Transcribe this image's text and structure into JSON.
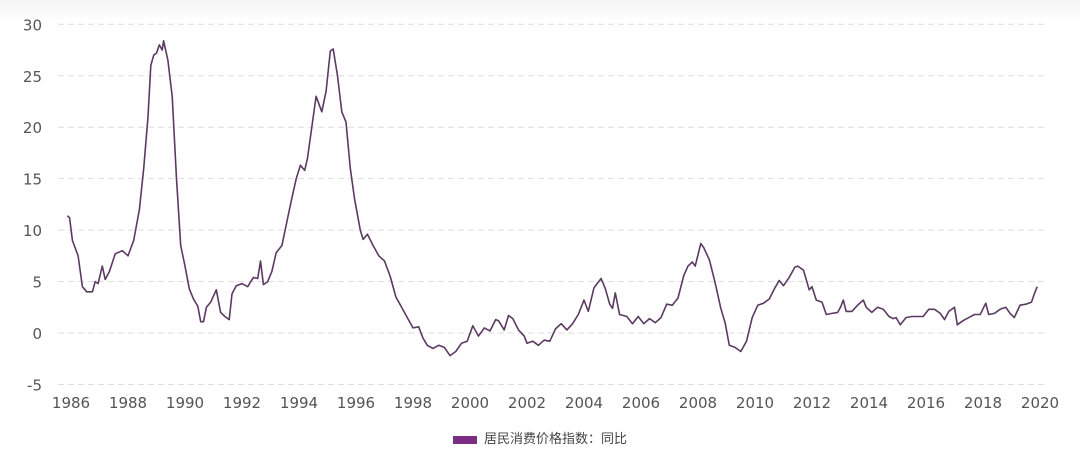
{
  "chart_data": {
    "type": "line",
    "title": "",
    "xlabel": "",
    "ylabel": "",
    "xlim": [
      1986,
      2020
    ],
    "ylim": [
      -5,
      30
    ],
    "x_ticks": [
      "1986",
      "1988",
      "1990",
      "1992",
      "1994",
      "1996",
      "1998",
      "2000",
      "2002",
      "2004",
      "2006",
      "2008",
      "2010",
      "2012",
      "2014",
      "2016",
      "2018",
      "2020"
    ],
    "y_ticks": [
      "-5",
      "0",
      "5",
      "10",
      "15",
      "20",
      "25",
      "30"
    ],
    "grid": "horizontal dashed",
    "legend_position": "bottom",
    "colors": {
      "line": "#5b3a61",
      "legend_swatch": "#7a2f82",
      "grid": "#dddddd"
    },
    "series": [
      {
        "name": "居民消费价格指数：同比",
        "points": [
          [
            1985.87,
            11.4
          ],
          [
            1985.95,
            11.2
          ],
          [
            1986.05,
            9
          ],
          [
            1986.25,
            7.5
          ],
          [
            1986.4,
            4.5
          ],
          [
            1986.55,
            4
          ],
          [
            1986.75,
            4
          ],
          [
            1986.85,
            5
          ],
          [
            1986.95,
            4.8
          ],
          [
            1987.1,
            6.5
          ],
          [
            1987.2,
            5.2
          ],
          [
            1987.35,
            6
          ],
          [
            1987.55,
            7.7
          ],
          [
            1987.8,
            8
          ],
          [
            1988.0,
            7.5
          ],
          [
            1988.2,
            9
          ],
          [
            1988.4,
            12
          ],
          [
            1988.55,
            16
          ],
          [
            1988.7,
            21
          ],
          [
            1988.8,
            26
          ],
          [
            1988.9,
            27
          ],
          [
            1989.0,
            27.2
          ],
          [
            1989.1,
            28
          ],
          [
            1989.2,
            27.5
          ],
          [
            1989.25,
            28.4
          ],
          [
            1989.4,
            26.5
          ],
          [
            1989.55,
            23
          ],
          [
            1989.7,
            15
          ],
          [
            1989.85,
            8.5
          ],
          [
            1990.0,
            6.5
          ],
          [
            1990.15,
            4.3
          ],
          [
            1990.3,
            3.3
          ],
          [
            1990.45,
            2.6
          ],
          [
            1990.55,
            1.1
          ],
          [
            1990.65,
            1.1
          ],
          [
            1990.75,
            2.5
          ],
          [
            1990.9,
            3
          ],
          [
            1991.1,
            4.2
          ],
          [
            1991.25,
            2
          ],
          [
            1991.4,
            1.6
          ],
          [
            1991.55,
            1.3
          ],
          [
            1991.65,
            3.8
          ],
          [
            1991.8,
            4.6
          ],
          [
            1992.0,
            4.8
          ],
          [
            1992.2,
            4.5
          ],
          [
            1992.4,
            5.4
          ],
          [
            1992.55,
            5.3
          ],
          [
            1992.65,
            7
          ],
          [
            1992.75,
            4.7
          ],
          [
            1992.9,
            5
          ],
          [
            1993.05,
            6
          ],
          [
            1993.2,
            7.8
          ],
          [
            1993.4,
            8.5
          ],
          [
            1993.55,
            10.5
          ],
          [
            1993.7,
            12.5
          ],
          [
            1993.9,
            15
          ],
          [
            1994.05,
            16.3
          ],
          [
            1994.2,
            15.8
          ],
          [
            1994.3,
            17
          ],
          [
            1994.45,
            20
          ],
          [
            1994.6,
            23
          ],
          [
            1994.8,
            21.5
          ],
          [
            1994.95,
            23.5
          ],
          [
            1995.1,
            27.4
          ],
          [
            1995.2,
            27.6
          ],
          [
            1995.35,
            25
          ],
          [
            1995.5,
            21.5
          ],
          [
            1995.65,
            20.5
          ],
          [
            1995.8,
            16
          ],
          [
            1995.95,
            13
          ],
          [
            1996.15,
            10
          ],
          [
            1996.25,
            9.1
          ],
          [
            1996.4,
            9.6
          ],
          [
            1996.6,
            8.5
          ],
          [
            1996.8,
            7.5
          ],
          [
            1997.0,
            7
          ],
          [
            1997.2,
            5.5
          ],
          [
            1997.4,
            3.5
          ],
          [
            1997.6,
            2.5
          ],
          [
            1997.8,
            1.5
          ],
          [
            1998.0,
            0.5
          ],
          [
            1998.2,
            0.6
          ],
          [
            1998.35,
            -0.5
          ],
          [
            1998.5,
            -1.2
          ],
          [
            1998.7,
            -1.5
          ],
          [
            1998.9,
            -1.2
          ],
          [
            1999.1,
            -1.4
          ],
          [
            1999.3,
            -2.2
          ],
          [
            1999.5,
            -1.8
          ],
          [
            1999.7,
            -1
          ],
          [
            1999.9,
            -0.8
          ],
          [
            2000.1,
            0.7
          ],
          [
            2000.3,
            -0.3
          ],
          [
            2000.5,
            0.5
          ],
          [
            2000.7,
            0.2
          ],
          [
            2000.9,
            1.3
          ],
          [
            2001.0,
            1.2
          ],
          [
            2001.2,
            0.3
          ],
          [
            2001.35,
            1.7
          ],
          [
            2001.5,
            1.4
          ],
          [
            2001.7,
            0.3
          ],
          [
            2001.9,
            -0.3
          ],
          [
            2002.0,
            -1
          ],
          [
            2002.2,
            -0.8
          ],
          [
            2002.4,
            -1.2
          ],
          [
            2002.6,
            -0.7
          ],
          [
            2002.8,
            -0.8
          ],
          [
            2003.0,
            0.4
          ],
          [
            2003.2,
            0.9
          ],
          [
            2003.4,
            0.3
          ],
          [
            2003.6,
            0.9
          ],
          [
            2003.8,
            1.8
          ],
          [
            2004.0,
            3.2
          ],
          [
            2004.15,
            2.1
          ],
          [
            2004.35,
            4.4
          ],
          [
            2004.6,
            5.3
          ],
          [
            2004.75,
            4.3
          ],
          [
            2004.9,
            2.8
          ],
          [
            2005.0,
            2.4
          ],
          [
            2005.1,
            3.9
          ],
          [
            2005.25,
            1.8
          ],
          [
            2005.5,
            1.6
          ],
          [
            2005.7,
            0.9
          ],
          [
            2005.9,
            1.6
          ],
          [
            2006.1,
            0.9
          ],
          [
            2006.3,
            1.4
          ],
          [
            2006.5,
            1.0
          ],
          [
            2006.7,
            1.5
          ],
          [
            2006.9,
            2.8
          ],
          [
            2007.1,
            2.7
          ],
          [
            2007.3,
            3.4
          ],
          [
            2007.5,
            5.6
          ],
          [
            2007.65,
            6.5
          ],
          [
            2007.8,
            6.9
          ],
          [
            2007.9,
            6.5
          ],
          [
            2008.1,
            8.7
          ],
          [
            2008.2,
            8.3
          ],
          [
            2008.4,
            7.1
          ],
          [
            2008.6,
            4.9
          ],
          [
            2008.8,
            2.4
          ],
          [
            2008.95,
            1.0
          ],
          [
            2009.1,
            -1.2
          ],
          [
            2009.3,
            -1.4
          ],
          [
            2009.5,
            -1.8
          ],
          [
            2009.7,
            -0.8
          ],
          [
            2009.9,
            1.5
          ],
          [
            2010.1,
            2.7
          ],
          [
            2010.3,
            2.9
          ],
          [
            2010.5,
            3.3
          ],
          [
            2010.7,
            4.4
          ],
          [
            2010.85,
            5.1
          ],
          [
            2011.0,
            4.6
          ],
          [
            2011.2,
            5.4
          ],
          [
            2011.4,
            6.4
          ],
          [
            2011.5,
            6.5
          ],
          [
            2011.7,
            6.1
          ],
          [
            2011.9,
            4.2
          ],
          [
            2012.0,
            4.5
          ],
          [
            2012.15,
            3.2
          ],
          [
            2012.35,
            3.0
          ],
          [
            2012.5,
            1.8
          ],
          [
            2012.7,
            1.9
          ],
          [
            2012.9,
            2.0
          ],
          [
            2013.0,
            2.5
          ],
          [
            2013.1,
            3.2
          ],
          [
            2013.2,
            2.1
          ],
          [
            2013.4,
            2.1
          ],
          [
            2013.6,
            2.7
          ],
          [
            2013.8,
            3.2
          ],
          [
            2013.9,
            2.5
          ],
          [
            2014.1,
            2.0
          ],
          [
            2014.3,
            2.5
          ],
          [
            2014.5,
            2.3
          ],
          [
            2014.7,
            1.6
          ],
          [
            2014.85,
            1.4
          ],
          [
            2014.95,
            1.5
          ],
          [
            2015.1,
            0.8
          ],
          [
            2015.3,
            1.5
          ],
          [
            2015.5,
            1.6
          ],
          [
            2015.7,
            1.6
          ],
          [
            2015.9,
            1.6
          ],
          [
            2016.1,
            2.3
          ],
          [
            2016.3,
            2.3
          ],
          [
            2016.5,
            1.9
          ],
          [
            2016.65,
            1.3
          ],
          [
            2016.8,
            2.1
          ],
          [
            2017.0,
            2.5
          ],
          [
            2017.1,
            0.8
          ],
          [
            2017.3,
            1.2
          ],
          [
            2017.5,
            1.5
          ],
          [
            2017.7,
            1.8
          ],
          [
            2017.9,
            1.8
          ],
          [
            2018.1,
            2.9
          ],
          [
            2018.2,
            1.8
          ],
          [
            2018.4,
            1.9
          ],
          [
            2018.6,
            2.3
          ],
          [
            2018.8,
            2.5
          ],
          [
            2018.95,
            1.9
          ],
          [
            2019.1,
            1.5
          ],
          [
            2019.3,
            2.7
          ],
          [
            2019.5,
            2.8
          ],
          [
            2019.7,
            3.0
          ],
          [
            2019.8,
            3.8
          ],
          [
            2019.9,
            4.5
          ]
        ]
      }
    ]
  }
}
